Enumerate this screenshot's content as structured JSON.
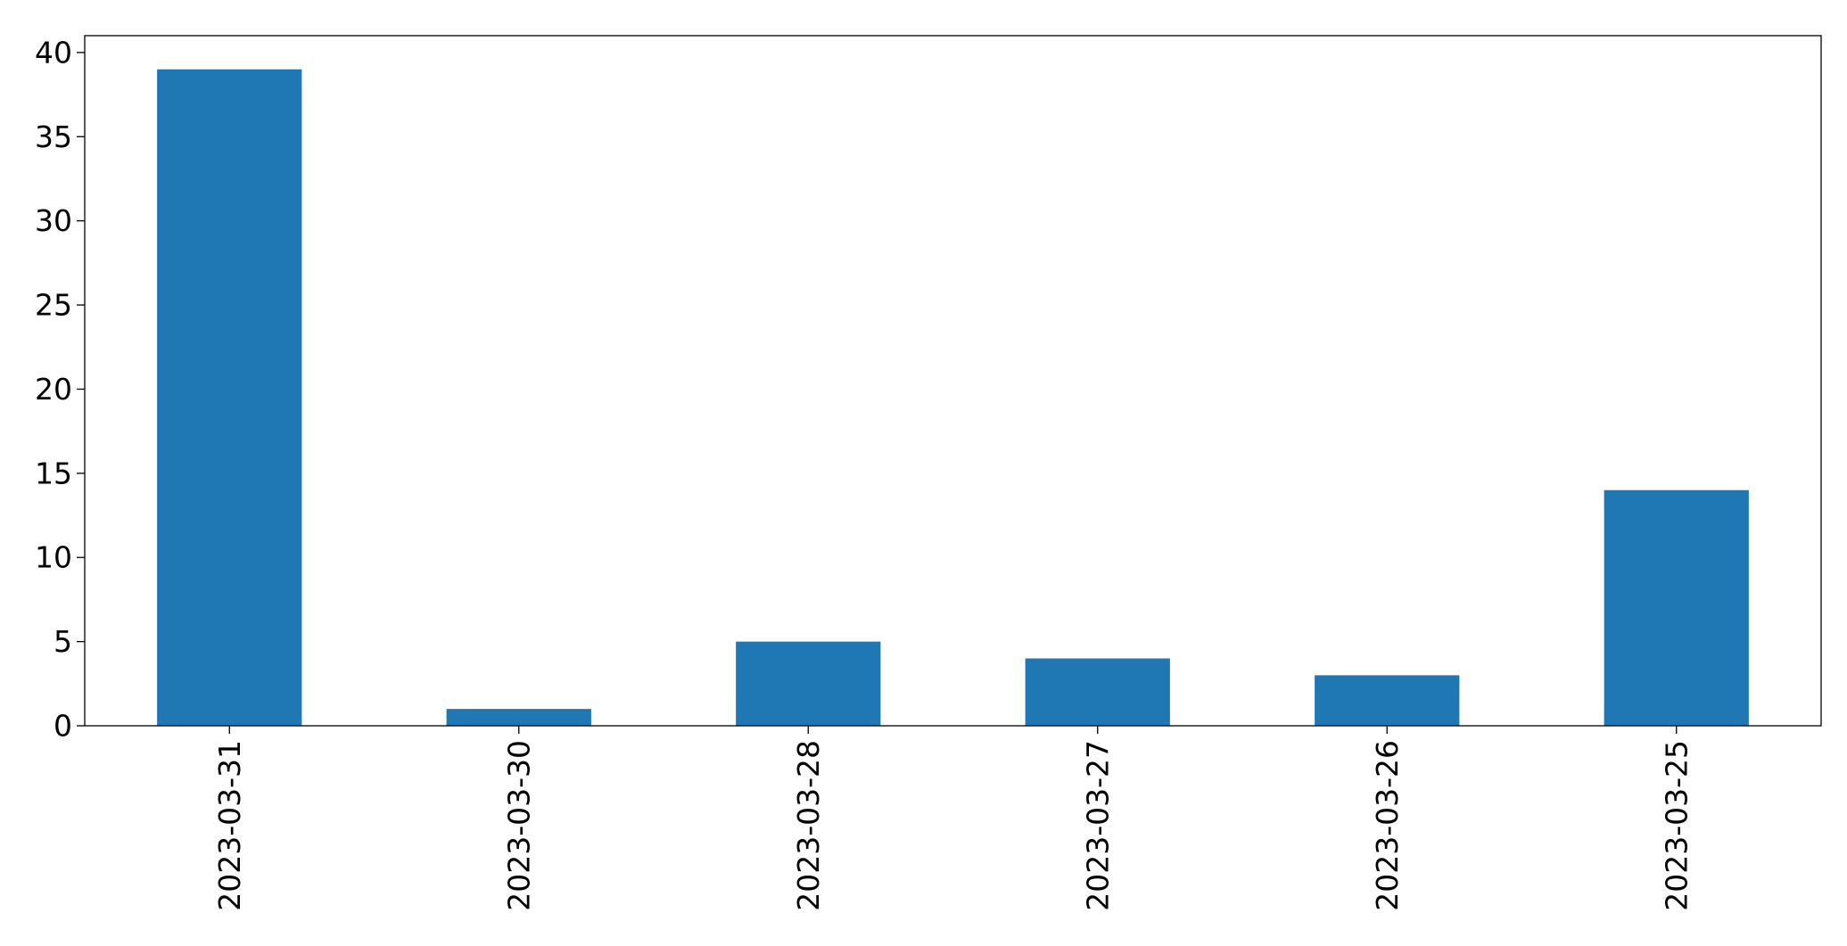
{
  "chart_data": {
    "type": "bar",
    "categories": [
      "2023-03-31",
      "2023-03-30",
      "2023-03-28",
      "2023-03-27",
      "2023-03-26",
      "2023-03-25"
    ],
    "values": [
      39,
      1,
      5,
      4,
      3,
      14
    ],
    "title": "",
    "xlabel": "",
    "ylabel": "",
    "ylim": [
      0,
      41
    ],
    "yticks": [
      0,
      5,
      10,
      15,
      20,
      25,
      30,
      35,
      40
    ],
    "grid": false,
    "legend": "none",
    "bar_color": "#1f77b4"
  }
}
